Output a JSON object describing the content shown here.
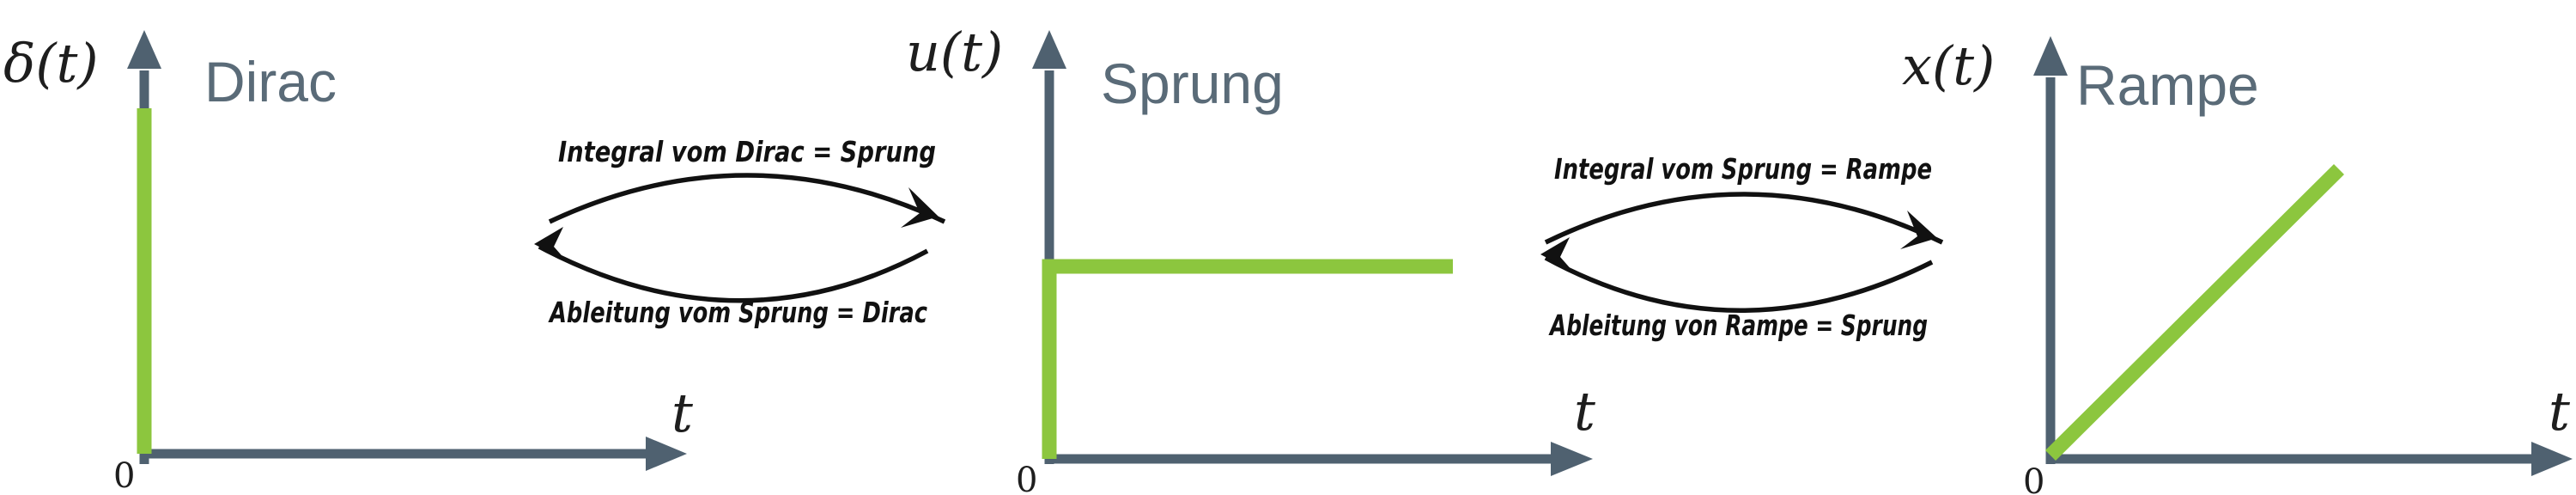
{
  "panels": [
    {
      "y_label": "δ(t)",
      "x_label": "t",
      "origin": "0",
      "title": "Dirac"
    },
    {
      "y_label": "u(t)",
      "x_label": "t",
      "origin": "0",
      "title": "Sprung"
    },
    {
      "y_label": "x(t)",
      "x_label": "t",
      "origin": "0",
      "title": "Rampe"
    }
  ],
  "relations": [
    {
      "upper": "Integral vom Dirac = Sprung",
      "lower": "Ableitung vom Sprung = Dirac"
    },
    {
      "upper": "Integral vom Sprung = Rampe",
      "lower": "Ableitung von Rampe = Sprung"
    }
  ],
  "colors": {
    "signal": "#8cc63e",
    "axis": "#4f6170",
    "title": "#5a6b78",
    "ink": "#111111"
  }
}
